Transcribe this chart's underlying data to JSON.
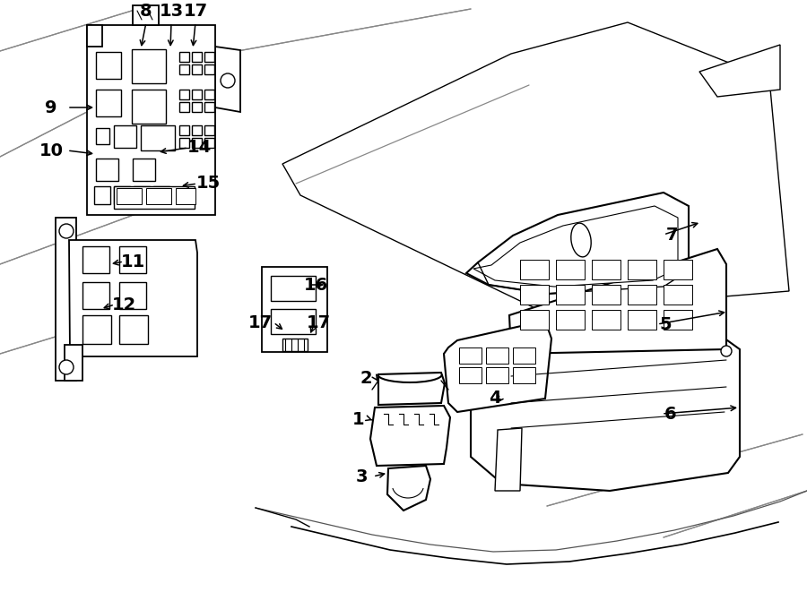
{
  "bg_color": "#ffffff",
  "line_color": "#000000",
  "fig_width": 9.0,
  "fig_height": 6.61,
  "dpi": 100,
  "lw_main": 1.3,
  "lw_thin": 0.8,
  "label_fs": 14
}
